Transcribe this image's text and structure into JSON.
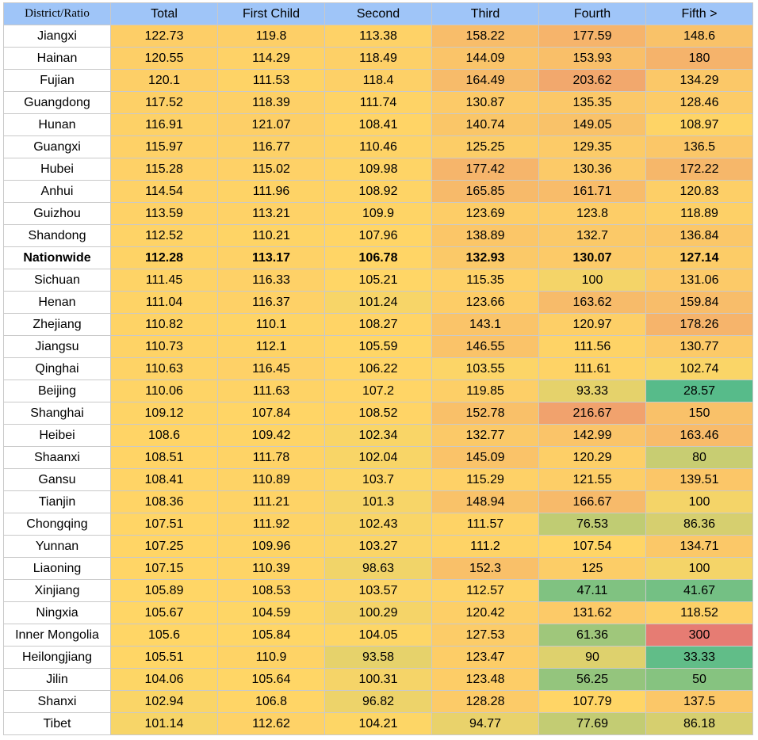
{
  "chart_data": {
    "type": "heatmap",
    "columns": [
      "District/Ratio",
      "Total",
      "First Child",
      "Second",
      "Third",
      "Fourth",
      "Fifth >"
    ],
    "highlight_row": "Nationwide",
    "rows": [
      {
        "name": "Jiangxi",
        "values": [
          "122.73",
          "119.8",
          "113.38",
          "158.22",
          "177.59",
          "148.6"
        ]
      },
      {
        "name": "Hainan",
        "values": [
          "120.55",
          "114.29",
          "118.49",
          "144.09",
          "153.93",
          "180"
        ]
      },
      {
        "name": "Fujian",
        "values": [
          "120.1",
          "111.53",
          "118.4",
          "164.49",
          "203.62",
          "134.29"
        ]
      },
      {
        "name": "Guangdong",
        "values": [
          "117.52",
          "118.39",
          "111.74",
          "130.87",
          "135.35",
          "128.46"
        ]
      },
      {
        "name": "Hunan",
        "values": [
          "116.91",
          "121.07",
          "108.41",
          "140.74",
          "149.05",
          "108.97"
        ]
      },
      {
        "name": "Guangxi",
        "values": [
          "115.97",
          "116.77",
          "110.46",
          "125.25",
          "129.35",
          "136.5"
        ]
      },
      {
        "name": "Hubei",
        "values": [
          "115.28",
          "115.02",
          "109.98",
          "177.42",
          "130.36",
          "172.22"
        ]
      },
      {
        "name": "Anhui",
        "values": [
          "114.54",
          "111.96",
          "108.92",
          "165.85",
          "161.71",
          "120.83"
        ]
      },
      {
        "name": "Guizhou",
        "values": [
          "113.59",
          "113.21",
          "109.9",
          "123.69",
          "123.8",
          "118.89"
        ]
      },
      {
        "name": "Shandong",
        "values": [
          "112.52",
          "110.21",
          "107.96",
          "138.89",
          "132.7",
          "136.84"
        ]
      },
      {
        "name": "Nationwide",
        "values": [
          "112.28",
          "113.17",
          "106.78",
          "132.93",
          "130.07",
          "127.14"
        ]
      },
      {
        "name": "Sichuan",
        "values": [
          "111.45",
          "116.33",
          "105.21",
          "115.35",
          "100",
          "131.06"
        ]
      },
      {
        "name": "Henan",
        "values": [
          "111.04",
          "116.37",
          "101.24",
          "123.66",
          "163.62",
          "159.84"
        ]
      },
      {
        "name": "Zhejiang",
        "values": [
          "110.82",
          "110.1",
          "108.27",
          "143.1",
          "120.97",
          "178.26"
        ]
      },
      {
        "name": "Jiangsu",
        "values": [
          "110.73",
          "112.1",
          "105.59",
          "146.55",
          "111.56",
          "130.77"
        ]
      },
      {
        "name": "Qinghai",
        "values": [
          "110.63",
          "116.45",
          "106.22",
          "103.55",
          "111.61",
          "102.74"
        ]
      },
      {
        "name": "Beijing",
        "values": [
          "110.06",
          "111.63",
          "107.2",
          "119.85",
          "93.33",
          "28.57"
        ]
      },
      {
        "name": "Shanghai",
        "values": [
          "109.12",
          "107.84",
          "108.52",
          "152.78",
          "216.67",
          "150"
        ]
      },
      {
        "name": "Heibei",
        "values": [
          "108.6",
          "109.42",
          "102.34",
          "132.77",
          "142.99",
          "163.46"
        ]
      },
      {
        "name": "Shaanxi",
        "values": [
          "108.51",
          "111.78",
          "102.04",
          "145.09",
          "120.29",
          "80"
        ]
      },
      {
        "name": "Gansu",
        "values": [
          "108.41",
          "110.89",
          "103.7",
          "115.29",
          "121.55",
          "139.51"
        ]
      },
      {
        "name": "Tianjin",
        "values": [
          "108.36",
          "111.21",
          "101.3",
          "148.94",
          "166.67",
          "100"
        ]
      },
      {
        "name": "Chongqing",
        "values": [
          "107.51",
          "111.92",
          "102.43",
          "111.57",
          "76.53",
          "86.36"
        ]
      },
      {
        "name": "Yunnan",
        "values": [
          "107.25",
          "109.96",
          "103.27",
          "111.2",
          "107.54",
          "134.71"
        ]
      },
      {
        "name": "Liaoning",
        "values": [
          "107.15",
          "110.39",
          "98.63",
          "152.3",
          "125",
          "100"
        ]
      },
      {
        "name": "Xinjiang",
        "values": [
          "105.89",
          "108.53",
          "103.57",
          "112.57",
          "47.11",
          "41.67"
        ]
      },
      {
        "name": "Ningxia",
        "values": [
          "105.67",
          "104.59",
          "100.29",
          "120.42",
          "131.62",
          "118.52"
        ]
      },
      {
        "name": "Inner Mongolia",
        "values": [
          "105.6",
          "105.84",
          "104.05",
          "127.53",
          "61.36",
          "300"
        ]
      },
      {
        "name": "Heilongjiang",
        "values": [
          "105.51",
          "110.9",
          "93.58",
          "123.47",
          "90",
          "33.33"
        ]
      },
      {
        "name": "Jilin",
        "values": [
          "104.06",
          "105.64",
          "100.31",
          "123.48",
          "56.25",
          "50"
        ]
      },
      {
        "name": "Shanxi",
        "values": [
          "102.94",
          "106.8",
          "96.82",
          "128.28",
          "107.79",
          "137.5"
        ]
      },
      {
        "name": "Tibet",
        "values": [
          "101.14",
          "112.62",
          "104.21",
          "94.77",
          "77.69",
          "86.18"
        ]
      }
    ],
    "color_scale": {
      "low": "#57bb8a",
      "mid": "#ffd666",
      "high": "#e67c73",
      "domain": [
        28.57,
        105,
        300
      ]
    },
    "header_color": "#9fc5f8"
  }
}
